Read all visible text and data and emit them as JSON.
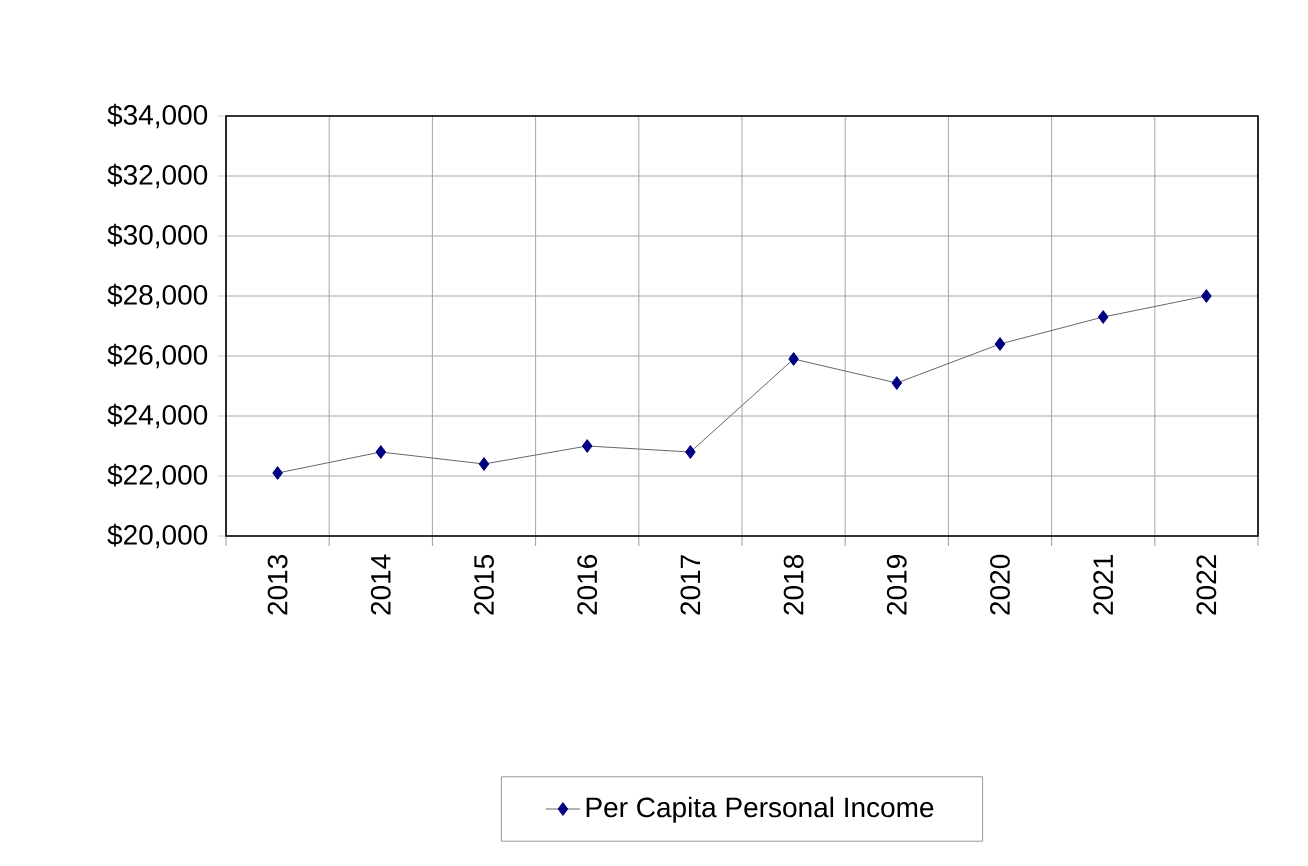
{
  "chart_data": {
    "type": "line",
    "categories": [
      "2013",
      "2014",
      "2015",
      "2016",
      "2017",
      "2018",
      "2019",
      "2020",
      "2021",
      "2022"
    ],
    "series": [
      {
        "name": "Per Capita Personal Income",
        "color": "#000080",
        "values": [
          22100,
          22800,
          22400,
          23000,
          22800,
          25900,
          25100,
          26400,
          27300,
          28000
        ]
      }
    ],
    "ylim": [
      20000,
      34000
    ],
    "yticks": [
      {
        "value": 20000,
        "label": "$20,000"
      },
      {
        "value": 22000,
        "label": "$22,000"
      },
      {
        "value": 24000,
        "label": "$24,000"
      },
      {
        "value": 26000,
        "label": "$26,000"
      },
      {
        "value": 28000,
        "label": "$28,000"
      },
      {
        "value": 30000,
        "label": "$30,000"
      },
      {
        "value": 32000,
        "label": "$32,000"
      },
      {
        "value": 34000,
        "label": "$34,000"
      }
    ],
    "grid": true,
    "legend": "bottom",
    "marker": "diamond",
    "line_style": "solid"
  }
}
